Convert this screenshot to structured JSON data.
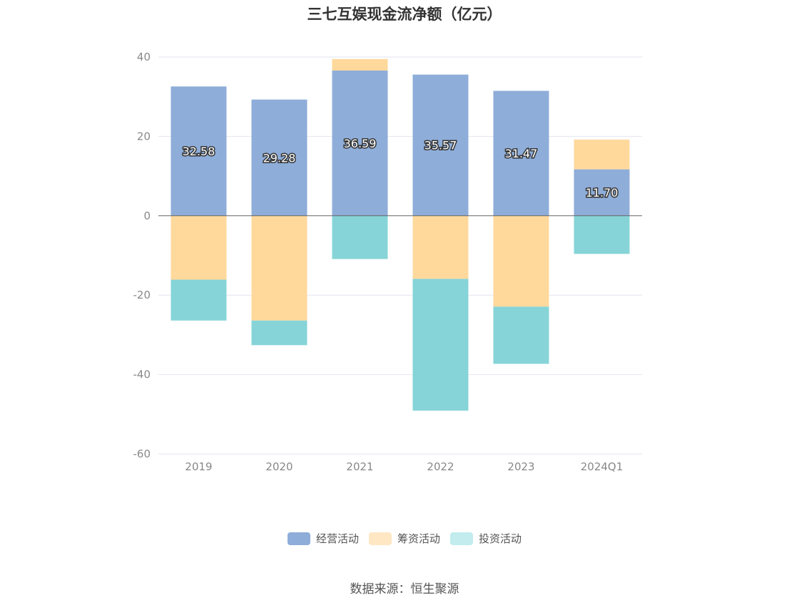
{
  "chart_data": {
    "type": "bar",
    "stacked": true,
    "title": "三七互娱现金流净额（亿元）",
    "categories": [
      "2019",
      "2020",
      "2021",
      "2022",
      "2023",
      "2024Q1"
    ],
    "series": [
      {
        "name": "经营活动",
        "color": "#8eadd9",
        "legend_color": "#8eadd9",
        "values": [
          32.58,
          29.28,
          36.59,
          35.57,
          31.47,
          11.7
        ],
        "labels": [
          "32.58",
          "29.28",
          "36.59",
          "35.57",
          "31.47",
          "11.70"
        ]
      },
      {
        "name": "筹资活动",
        "color": "#ffd99c",
        "legend_color": "#ffe7c4",
        "values": [
          -16.1,
          -26.4,
          2.9,
          -15.9,
          -22.9,
          7.5
        ]
      },
      {
        "name": "投资活动",
        "color": "#86d4d8",
        "legend_color": "#c2ecee",
        "values": [
          -10.3,
          -6.2,
          -10.9,
          -33.2,
          -14.4,
          -9.6
        ]
      }
    ],
    "ylim": [
      -60,
      40
    ],
    "yticks": [
      "40",
      "20",
      "0",
      "-20",
      "-40",
      "-60"
    ],
    "ytick_values": [
      40,
      20,
      0,
      -20,
      -40,
      -60
    ],
    "grid": true,
    "legend": "bottom"
  },
  "source": "数据来源：恒生聚源"
}
